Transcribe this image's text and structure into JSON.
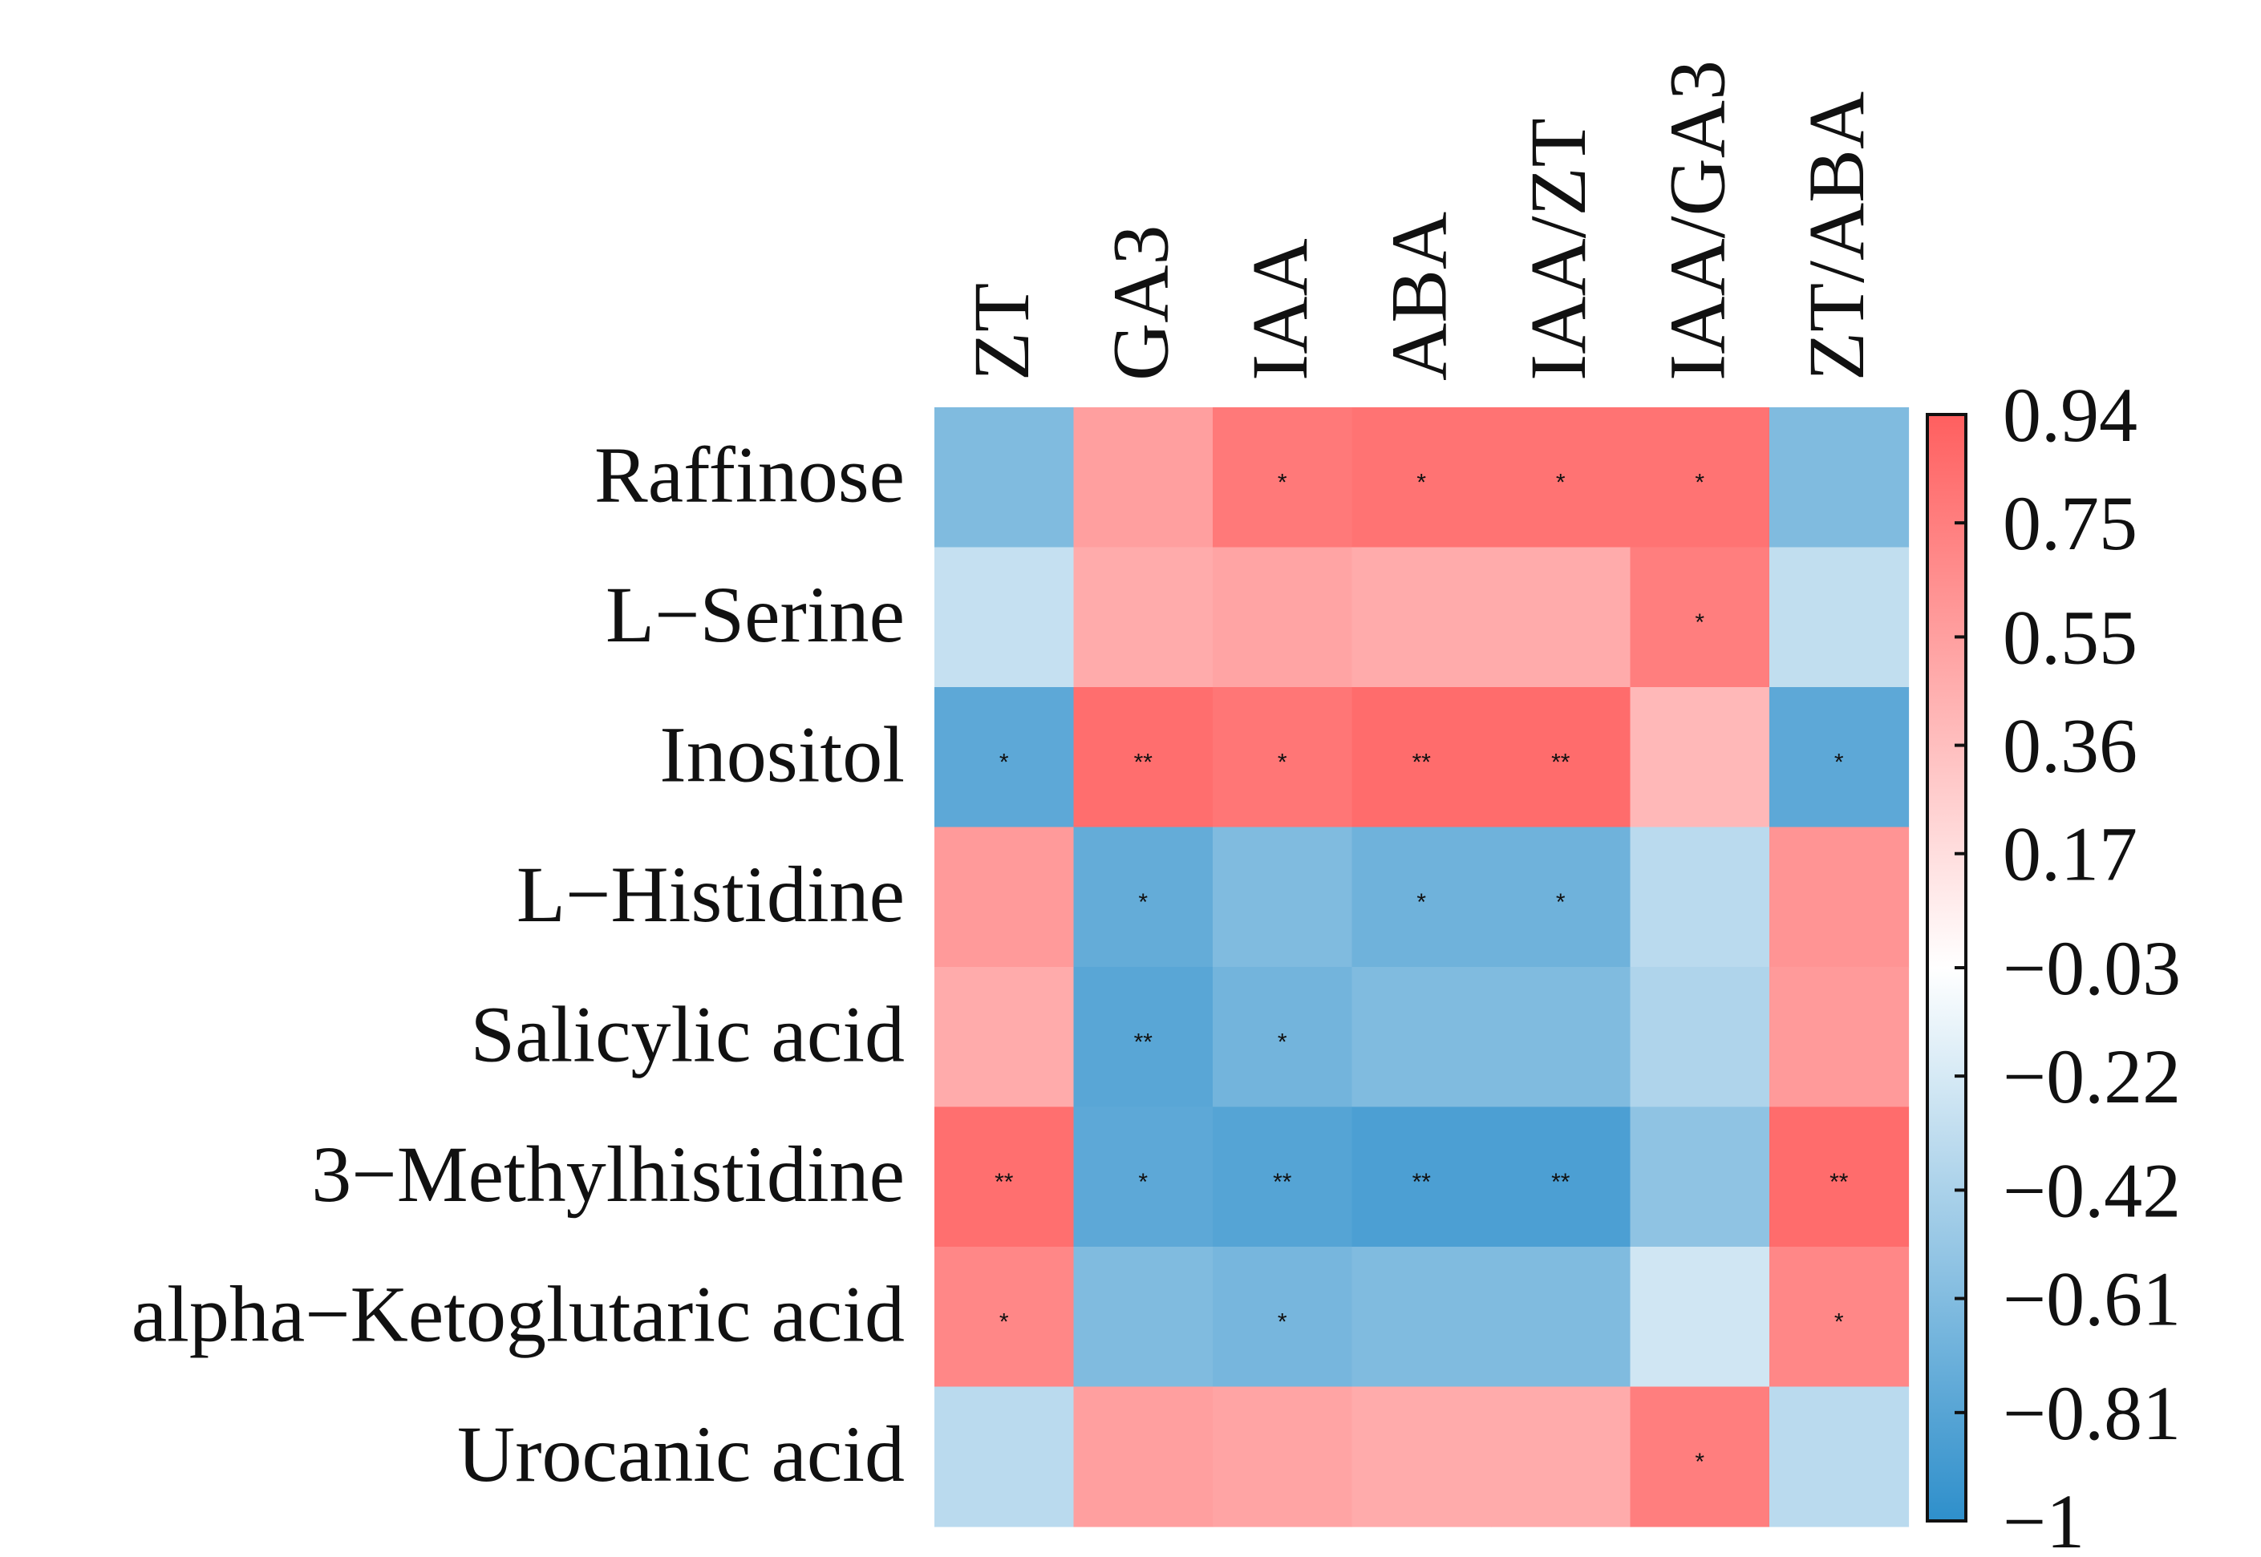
{
  "chart_data": {
    "type": "heatmap",
    "title": "",
    "columns": [
      "ZT",
      "GA3",
      "IAA",
      "ABA",
      "IAA/ZT",
      "IAA/GA3",
      "ZT/ABA"
    ],
    "rows": [
      "Raffinose",
      "L−Serine",
      "Inositol",
      "L−Histidine",
      "Salicylic acid",
      "3−Methylhistidine",
      "alpha−Ketoglutaric acid",
      "Urocanic acid"
    ],
    "values": [
      [
        -0.62,
        0.55,
        0.78,
        0.82,
        0.82,
        0.82,
        -0.62
      ],
      [
        -0.3,
        0.48,
        0.52,
        0.48,
        0.48,
        0.75,
        -0.32
      ],
      [
        -0.78,
        0.85,
        0.8,
        0.86,
        0.86,
        0.4,
        -0.78
      ],
      [
        0.58,
        -0.75,
        -0.62,
        -0.7,
        -0.7,
        -0.35,
        0.62
      ],
      [
        0.48,
        -0.8,
        -0.68,
        -0.62,
        -0.62,
        -0.4,
        0.58
      ],
      [
        0.84,
        -0.78,
        -0.82,
        -0.86,
        -0.86,
        -0.55,
        0.86
      ],
      [
        0.7,
        -0.62,
        -0.66,
        -0.62,
        -0.62,
        -0.25,
        0.7
      ],
      [
        -0.35,
        0.55,
        0.52,
        0.48,
        0.48,
        0.75,
        -0.35
      ]
    ],
    "significance": [
      [
        "",
        "",
        "*",
        "*",
        "*",
        "*",
        ""
      ],
      [
        "",
        "",
        "",
        "",
        "",
        "*",
        ""
      ],
      [
        "*",
        "**",
        "*",
        "**",
        "**",
        "",
        "*"
      ],
      [
        "",
        "*",
        "",
        "*",
        "*",
        "",
        ""
      ],
      [
        "",
        "**",
        "*",
        "",
        "",
        "",
        ""
      ],
      [
        "**",
        "*",
        "**",
        "**",
        "**",
        "",
        "**"
      ],
      [
        "*",
        "",
        "*",
        "",
        "",
        "",
        "*"
      ],
      [
        "",
        "",
        "",
        "",
        "",
        "*",
        ""
      ]
    ],
    "colorbar": {
      "min": -1,
      "max": 0.94,
      "tick_values": [
        0.94,
        0.75,
        0.55,
        0.36,
        0.17,
        -0.03,
        -0.22,
        -0.42,
        -0.61,
        -0.81,
        -1
      ],
      "tick_labels": [
        "0.94",
        "0.75",
        "0.55",
        "0.36",
        "0.17",
        "−0.03",
        "−0.22",
        "−0.42",
        "−0.61",
        "−0.81",
        "−1"
      ],
      "low_color": "#2e8fcb",
      "mid_color": "#ffffff",
      "high_color": "#ff5f5f"
    }
  }
}
